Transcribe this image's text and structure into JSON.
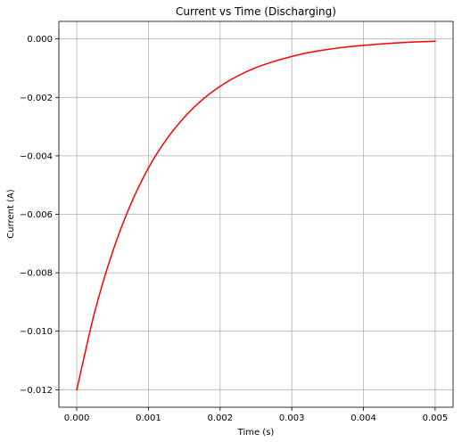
{
  "chart_data": {
    "type": "line",
    "title": "Current vs Time (Discharging)",
    "xlabel": "Time (s)",
    "ylabel": "Current (A)",
    "xlim": [
      -0.00025,
      0.00525
    ],
    "ylim": [
      -0.0126,
      0.0006
    ],
    "xticks": [
      0.0,
      0.001,
      0.002,
      0.003,
      0.004,
      0.005
    ],
    "xtick_labels": [
      "0.000",
      "0.001",
      "0.002",
      "0.003",
      "0.004",
      "0.005"
    ],
    "yticks": [
      -0.012,
      -0.01,
      -0.008,
      -0.006,
      -0.004,
      -0.002,
      0.0
    ],
    "ytick_labels": [
      "−0.012",
      "−0.010",
      "−0.008",
      "−0.006",
      "−0.004",
      "−0.002",
      "0.000"
    ],
    "grid": true,
    "series": [
      {
        "color": "#ff0000",
        "x": [
          0.0,
          0.00025,
          0.0005,
          0.00075,
          0.001,
          0.00125,
          0.0015,
          0.00175,
          0.002,
          0.00225,
          0.0025,
          0.00275,
          0.003,
          0.00325,
          0.0035,
          0.00375,
          0.004,
          0.00425,
          0.0045,
          0.00475,
          0.005
        ],
        "y": [
          -0.012,
          -0.00934,
          -0.00728,
          -0.00567,
          -0.00441,
          -0.00344,
          -0.00268,
          -0.00208,
          -0.00162,
          -0.00126,
          -0.00098,
          -0.00077,
          -0.0006,
          -0.00046,
          -0.00036,
          -0.00028,
          -0.00022,
          -0.00017,
          -0.00013,
          -0.0001,
          -8e-05
        ]
      }
    ]
  }
}
